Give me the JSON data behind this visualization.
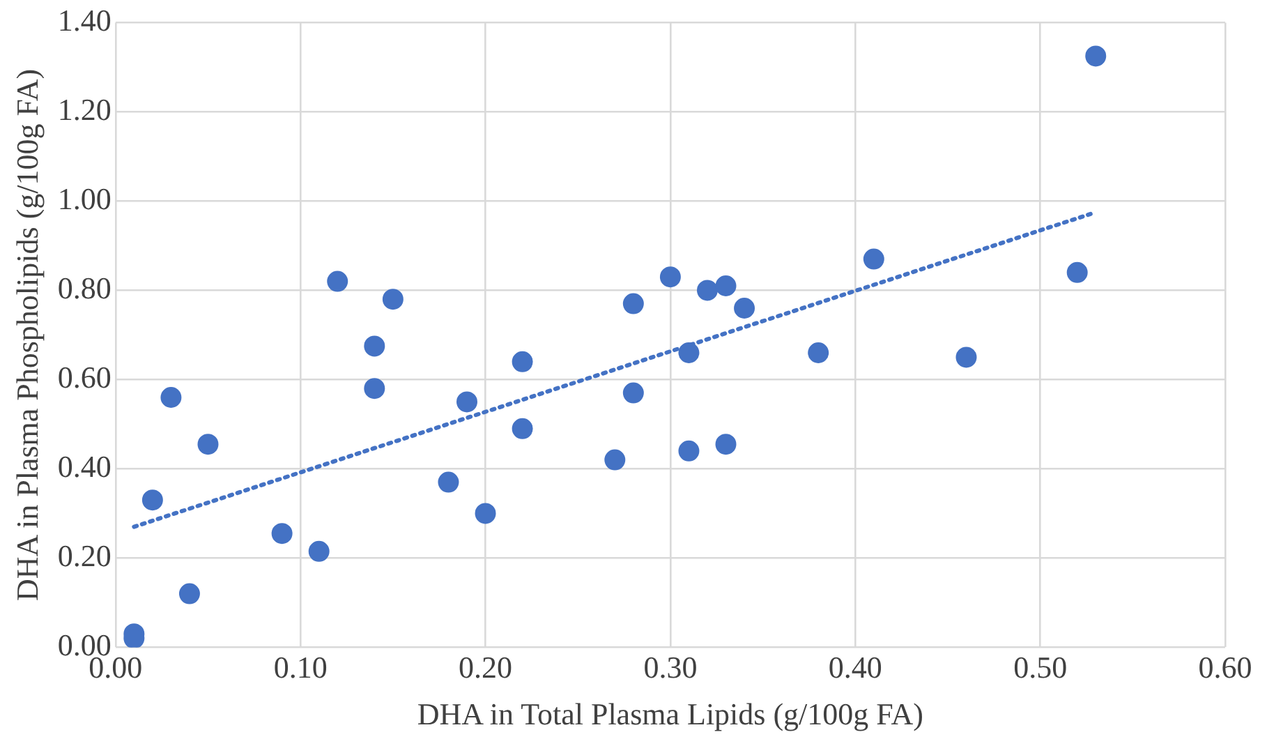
{
  "chart_data": {
    "type": "scatter",
    "xlabel": "DHA in Total Plasma Lipids (g/100g FA)",
    "ylabel": "DHA in Plasma Phospholipids (g/100g FA)",
    "grid": true,
    "legend": false,
    "marker": "circle",
    "xlim": [
      0,
      0.6
    ],
    "xticks": [
      {
        "value": 0,
        "label": "0.00"
      },
      {
        "value": 0.1,
        "label": "0.10"
      },
      {
        "value": 0.2,
        "label": "0.20"
      },
      {
        "value": 0.3,
        "label": "0.30"
      },
      {
        "value": 0.4,
        "label": "0.40"
      },
      {
        "value": 0.5,
        "label": "0.50"
      },
      {
        "value": 0.6,
        "label": "0.60"
      }
    ],
    "ylim": [
      0,
      1.4
    ],
    "yticks": [
      {
        "value": 0,
        "label": "0.00"
      },
      {
        "value": 0.2,
        "label": "0.20"
      },
      {
        "value": 0.4,
        "label": "0.40"
      },
      {
        "value": 0.6,
        "label": "0.60"
      },
      {
        "value": 0.8,
        "label": "0.80"
      },
      {
        "value": 1,
        "label": "1.00"
      },
      {
        "value": 1.2,
        "label": "1.20"
      },
      {
        "value": 1.4,
        "label": "1.40"
      }
    ],
    "series": [
      {
        "type": "scatter",
        "color": "#4472c4",
        "x": [
          0.01,
          0.01,
          0.02,
          0.03,
          0.04,
          0.05,
          0.09,
          0.11,
          0.12,
          0.14,
          0.14,
          0.15,
          0.18,
          0.19,
          0.2,
          0.22,
          0.22,
          0.27,
          0.28,
          0.28,
          0.3,
          0.31,
          0.31,
          0.32,
          0.33,
          0.33,
          0.34,
          0.38,
          0.41,
          0.46,
          0.52,
          0.53
        ],
        "values": [
          0.03,
          0.02,
          0.33,
          0.56,
          0.12,
          0.455,
          0.255,
          0.215,
          0.82,
          0.675,
          0.58,
          0.78,
          0.37,
          0.55,
          0.3,
          0.64,
          0.49,
          0.42,
          0.77,
          0.57,
          0.83,
          0.66,
          0.44,
          0.8,
          0.81,
          0.455,
          0.76,
          0.66,
          0.87,
          0.65,
          0.84,
          1.325
        ]
      },
      {
        "type": "line",
        "color": "#4472c4",
        "line_style": "dotted",
        "marker": "none",
        "x": [
          0.01,
          0.53
        ],
        "values": [
          0.27,
          0.975
        ]
      }
    ]
  }
}
